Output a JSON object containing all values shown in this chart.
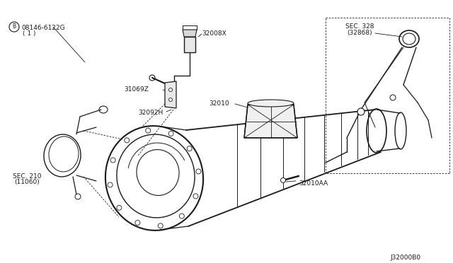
{
  "bg_color": "#ffffff",
  "line_color": "#1a1a1a",
  "diagram_id": "J32000B0",
  "labels": {
    "part1_num": "B",
    "part1": "08146-6122G",
    "part1b": "( 1 )",
    "part2": "32008X",
    "part3": "31069Z",
    "part4": "32092H",
    "part5": "32010",
    "part6": "32010AA",
    "sec1a": "SEC. 210",
    "sec1b": "(11060)",
    "sec2a": "SEC. 328",
    "sec2b": "(32868)"
  },
  "figsize": [
    6.4,
    3.72
  ],
  "dpi": 100
}
